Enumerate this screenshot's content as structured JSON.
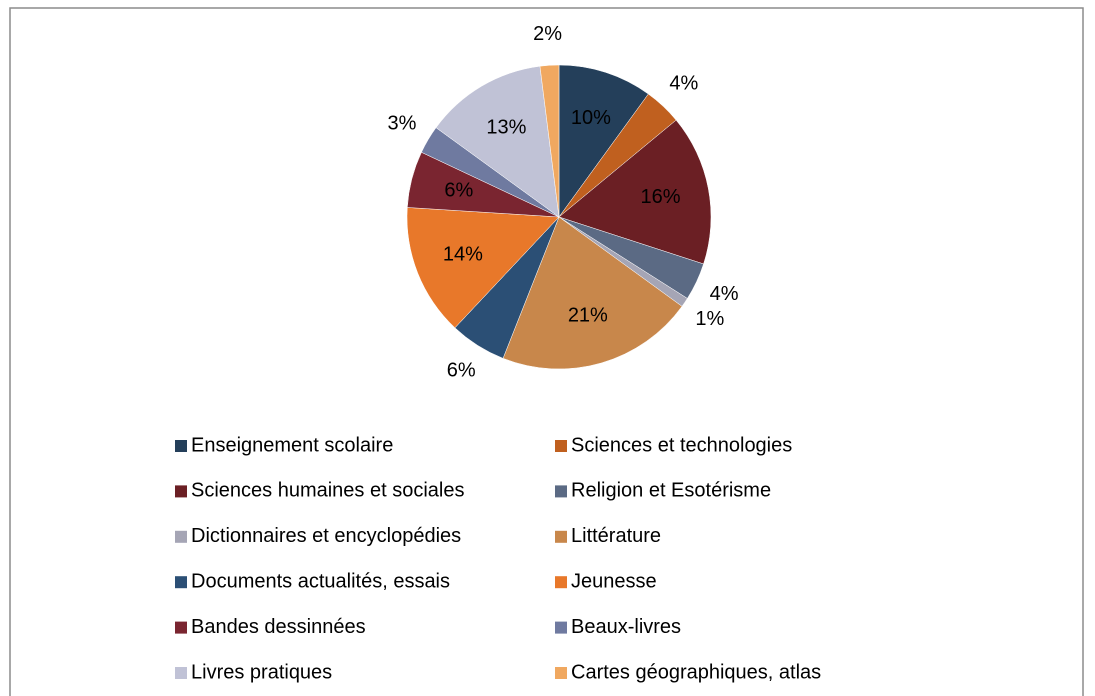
{
  "chart_data": {
    "type": "pie",
    "categories": [
      "Enseignement scolaire",
      "Sciences et technologies",
      "Sciences humaines et sociales",
      "Religion et Esotérisme",
      "Dictionnaires et encyclopédies",
      "Littérature",
      "Documents actualités, essais",
      "Jeunesse",
      "Bandes dessinnées",
      "Beaux-livres",
      "Livres pratiques",
      "Cartes géographiques, atlas"
    ],
    "values": [
      10,
      4,
      16,
      4,
      1,
      21,
      6,
      14,
      6,
      3,
      13,
      2
    ],
    "value_labels": [
      "10%",
      "4%",
      "16%",
      "4%",
      "1%",
      "21%",
      "6%",
      "14%",
      "6%",
      "3%",
      "13%",
      "2%"
    ],
    "colors": [
      "#243f5a",
      "#c0601f",
      "#6b1f24",
      "#5b6a84",
      "#a5a5b5",
      "#c8874b",
      "#2b4f75",
      "#e8782a",
      "#7a2530",
      "#6f7aa0",
      "#c0c2d6",
      "#f0a860"
    ],
    "legend": "bottom"
  }
}
